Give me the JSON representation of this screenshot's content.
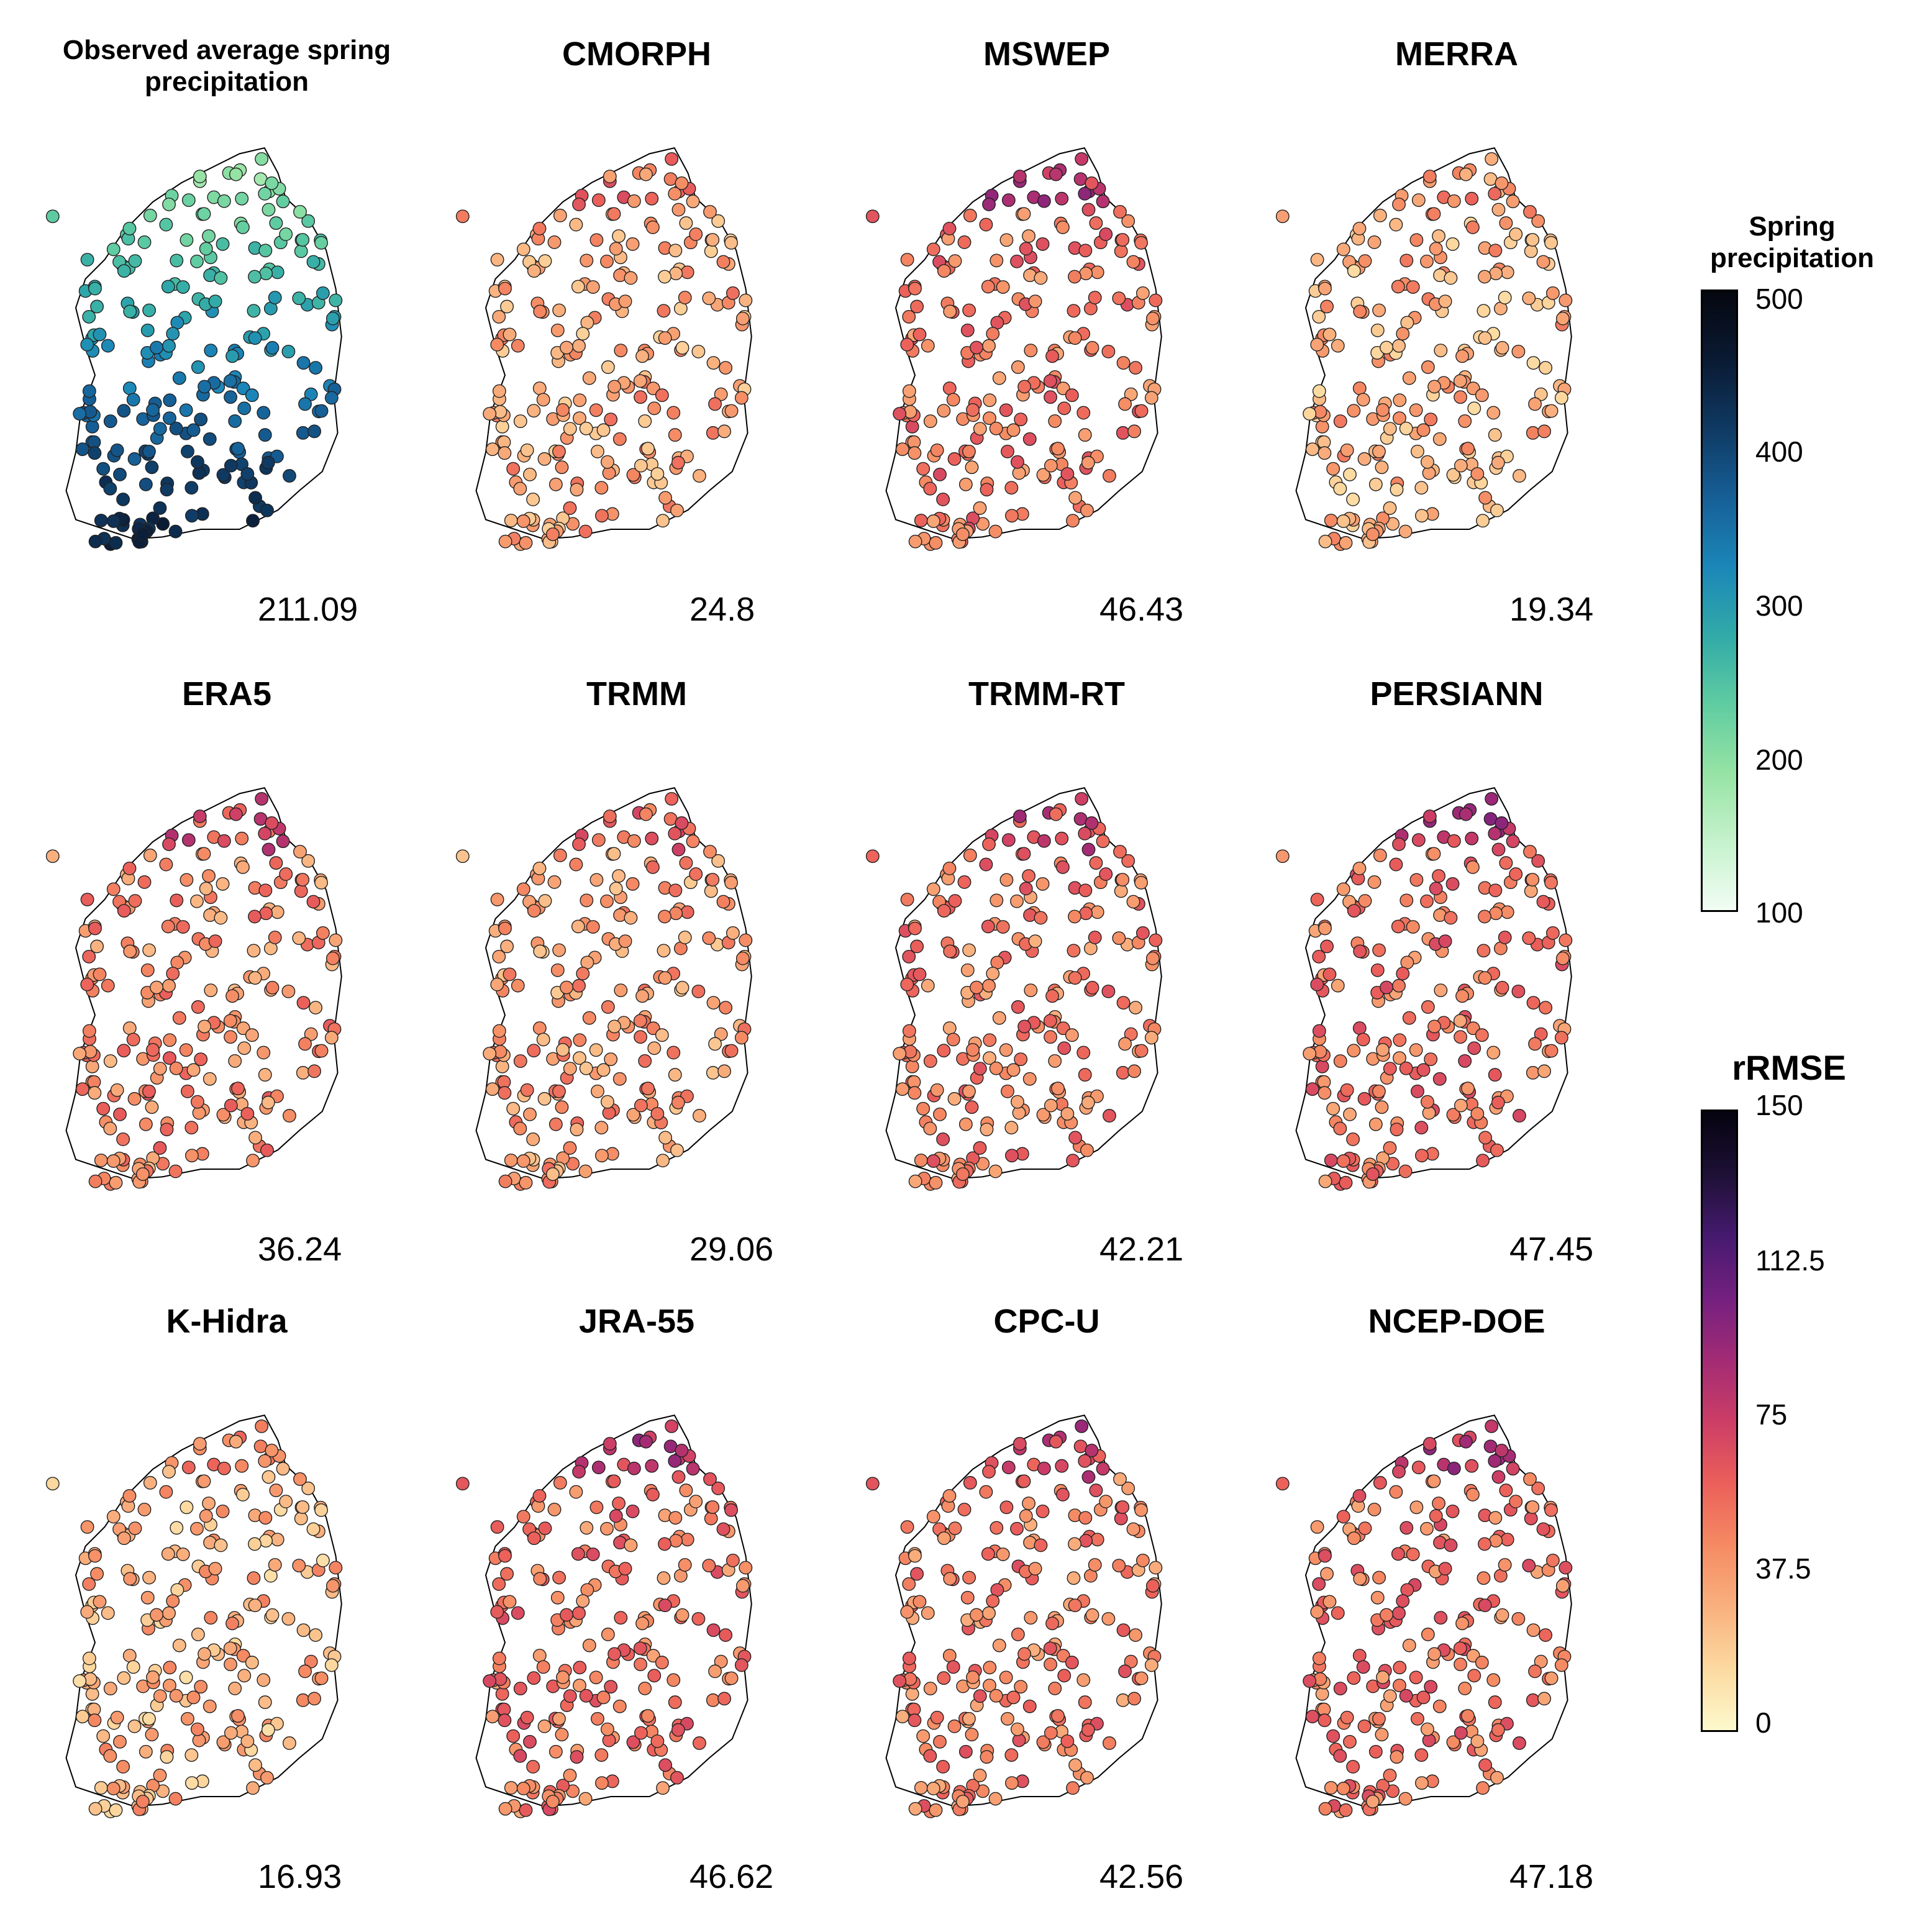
{
  "panels": [
    {
      "title": "Observed average spring precipitation",
      "value": "211.09",
      "scale": "precip"
    },
    {
      "title": "CMORPH",
      "value": "24.8",
      "scale": "rrmse"
    },
    {
      "title": "MSWEP",
      "value": "46.43",
      "scale": "rrmse"
    },
    {
      "title": "MERRA",
      "value": "19.34",
      "scale": "rrmse"
    },
    {
      "title": "ERA5",
      "value": "36.24",
      "scale": "rrmse"
    },
    {
      "title": "TRMM",
      "value": "29.06",
      "scale": "rrmse"
    },
    {
      "title": "TRMM-RT",
      "value": "42.21",
      "scale": "rrmse"
    },
    {
      "title": "PERSIANN",
      "value": "47.45",
      "scale": "rrmse"
    },
    {
      "title": "K-Hidra",
      "value": "16.93",
      "scale": "rrmse"
    },
    {
      "title": "JRA-55",
      "value": "46.62",
      "scale": "rrmse"
    },
    {
      "title": "CPC-U",
      "value": "42.56",
      "scale": "rrmse"
    },
    {
      "title": "NCEP-DOE",
      "value": "47.18",
      "scale": "rrmse"
    }
  ],
  "legend_precip": {
    "title": "Spring precipitation",
    "ticks": [
      "500",
      "400",
      "300",
      "200",
      "100"
    ],
    "colors": [
      "#f2fdf4",
      "#c5f2cc",
      "#95e3a4",
      "#5fcca1",
      "#31aaa8",
      "#1b86b8",
      "#165f97",
      "#0f3a63",
      "#0a1a33",
      "#05070f"
    ]
  },
  "legend_rrmse": {
    "title": "rRMSE",
    "ticks": [
      "150",
      "112.5",
      "75",
      "37.5",
      "0"
    ],
    "colors": [
      "#fcf9cc",
      "#fcd9a0",
      "#f9b07e",
      "#f58a63",
      "#eb5f5a",
      "#cc3d66",
      "#a22b75",
      "#732080",
      "#451a6e",
      "#1c1034",
      "#05030f"
    ]
  }
}
